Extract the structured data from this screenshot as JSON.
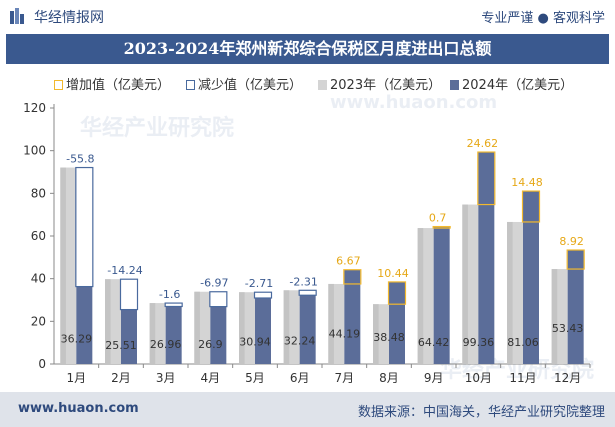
{
  "header": {
    "site_name": "华经情报网",
    "tagline": "专业严谨 ● 客观科学"
  },
  "chart_title": "2023-2024年郑州新郑综合保税区月度进出口总额",
  "legend": [
    {
      "label": "增加值（亿美元）",
      "swatch": "increase"
    },
    {
      "label": "减少值（亿美元）",
      "swatch": "decrease"
    },
    {
      "label": "2023年（亿美元）",
      "swatch": "y2023"
    },
    {
      "label": "2024年（亿美元）",
      "swatch": "y2024"
    }
  ],
  "colors": {
    "y2023": "#d4d4d4",
    "y2024": "#5b6d99",
    "increase": "#f2b92e",
    "decrease": "#4a6a9e",
    "title_bar": "#3a598f",
    "footer": "#dfe3ea"
  },
  "chart_data": {
    "type": "bar",
    "categories": [
      "1月",
      "2月",
      "3月",
      "4月",
      "5月",
      "6月",
      "7月",
      "8月",
      "9月",
      "10月",
      "11月",
      "12月"
    ],
    "series": [
      {
        "name": "2023年（亿美元）",
        "values": [
          92.09,
          39.75,
          28.56,
          33.87,
          33.65,
          34.55,
          37.52,
          28.04,
          63.72,
          74.74,
          66.58,
          44.51
        ]
      },
      {
        "name": "2024年（亿美元）",
        "values": [
          36.29,
          25.51,
          26.96,
          26.9,
          30.94,
          32.24,
          44.19,
          38.48,
          64.42,
          99.36,
          81.06,
          53.43
        ]
      }
    ],
    "change_labels": [
      "-55.8",
      "-14.24",
      "-1.6",
      "-6.97",
      "-2.71",
      "-2.31",
      "6.67",
      "10.44",
      "0.7",
      "24.62",
      "14.48",
      "8.92"
    ],
    "y2024_labels": [
      "36.29",
      "25.51",
      "26.96",
      "26.9",
      "30.94",
      "32.24",
      "44.19",
      "38.48",
      "64.42",
      "99.36",
      "81.06",
      "53.43"
    ],
    "yticks": [
      "0",
      "20",
      "40",
      "60",
      "80",
      "100",
      "120"
    ],
    "ylim": [
      0,
      120
    ],
    "grid": false
  },
  "watermarks": [
    "华经产业研究院",
    "www.huaon.com",
    "华经产业研究院"
  ],
  "footer": {
    "url": "www.huaon.com",
    "source": "数据来源：中国海关，华经产业研究院整理"
  }
}
